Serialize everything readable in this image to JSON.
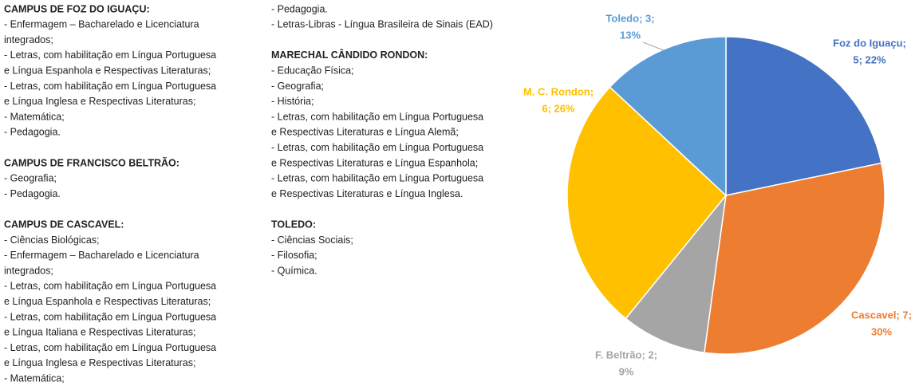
{
  "columns": [
    [
      {
        "heading": "CAMPUS DE FOZ DO IGUAÇU:",
        "lines": [
          "- Enfermagem – Bacharelado e Licenciatura",
          "integrados;",
          "- Letras, com habilitação em Língua Portuguesa",
          "e Língua Espanhola e Respectivas Literaturas;",
          "- Letras, com habilitação em Língua Portuguesa",
          "e Língua Inglesa e Respectivas Literaturas;",
          "- Matemática;",
          "- Pedagogia."
        ]
      },
      {
        "heading": "CAMPUS DE FRANCISCO BELTRÃO:",
        "lines": [
          "- Geografia;",
          "- Pedagogia."
        ]
      },
      {
        "heading": "CAMPUS DE CASCAVEL:",
        "lines": [
          "- Ciências Biológicas;",
          "- Enfermagem – Bacharelado e Licenciatura",
          "integrados;",
          "- Letras, com habilitação em Língua Portuguesa",
          "e Língua Espanhola e Respectivas Literaturas;",
          "- Letras, com habilitação em Língua Portuguesa",
          "e Língua Italiana e Respectivas Literaturas;",
          "- Letras, com habilitação em Língua Portuguesa",
          "e Língua Inglesa e Respectivas Literaturas;",
          "- Matemática;"
        ]
      }
    ],
    [
      {
        "lines": [
          "- Pedagogia.",
          "- Letras-Libras - Língua Brasileira de Sinais (EAD)"
        ]
      },
      {
        "heading": "MARECHAL CÂNDIDO RONDON:",
        "lines": [
          "- Educação Física;",
          "- Geografia;",
          "- História;",
          "- Letras, com habilitação em Língua Portuguesa",
          "e Respectivas Literaturas e Língua Alemã;",
          "- Letras, com habilitação em Língua Portuguesa",
          "e Respectivas Literaturas e Língua Espanhola;",
          "- Letras, com habilitação em Língua Portuguesa",
          "e Respectivas Literaturas e Língua Inglesa."
        ]
      },
      {
        "heading": "TOLEDO:",
        "lines": [
          "- Ciências Sociais;",
          "- Filosofia;",
          "- Química."
        ]
      }
    ]
  ],
  "chart_data": {
    "type": "pie",
    "values": [
      5,
      7,
      2,
      6,
      3
    ],
    "value_labels": [
      [
        "Foz do Iguaçu;",
        "5; 22%"
      ],
      [
        "Cascavel; 7;",
        "30%"
      ],
      [
        "F. Beltrão; 2;",
        "9%"
      ],
      [
        "M. C. Rondon;",
        "6; 26%"
      ],
      [
        "Toledo; 3;",
        "13%"
      ]
    ],
    "colors": [
      "#4472c4",
      "#ed7d31",
      "#a5a5a5",
      "#ffc000",
      "#5b9bd5"
    ]
  }
}
